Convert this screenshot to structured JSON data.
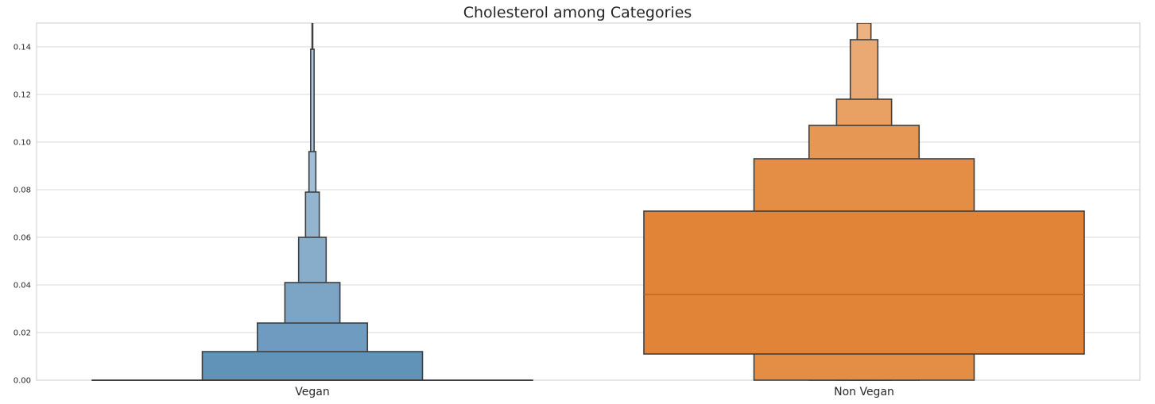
{
  "chart_data": {
    "type": "boxen",
    "title": "Cholesterol among Categories",
    "xlabel": "",
    "ylabel": "",
    "categories": [
      "Vegan",
      "Non Vegan"
    ],
    "ylim": [
      0,
      0.15
    ],
    "yticks": [
      0.0,
      0.02,
      0.04,
      0.06,
      0.08,
      0.1,
      0.12,
      0.14
    ],
    "ytick_labels": [
      "0.00",
      "0.02",
      "0.04",
      "0.06",
      "0.08",
      "0.10",
      "0.12",
      "0.14"
    ],
    "grid": true,
    "series": [
      {
        "category": "Vegan",
        "color": "#4c84b0",
        "median": 0.0,
        "letter_values": [
          {
            "low": 0.0,
            "high": 0.0
          },
          {
            "low": 0.0,
            "high": 0.012
          },
          {
            "low": 0.0,
            "high": 0.024
          },
          {
            "low": 0.0,
            "high": 0.041
          },
          {
            "low": 0.0,
            "high": 0.06
          },
          {
            "low": 0.0,
            "high": 0.079
          },
          {
            "low": 0.0,
            "high": 0.096
          },
          {
            "low": 0.0,
            "high": 0.139
          }
        ],
        "whisker_max": 0.15
      },
      {
        "category": "Non Vegan",
        "color": "#e07e2c",
        "median": 0.036,
        "letter_values": [
          {
            "low": 0.011,
            "high": 0.071
          },
          {
            "low": 0.0,
            "high": 0.093
          },
          {
            "low": 0.0,
            "high": 0.107
          },
          {
            "low": 0.0,
            "high": 0.118
          },
          {
            "low": 0.0,
            "high": 0.143
          },
          {
            "low": 0.0,
            "high": 0.15
          }
        ]
      }
    ]
  }
}
